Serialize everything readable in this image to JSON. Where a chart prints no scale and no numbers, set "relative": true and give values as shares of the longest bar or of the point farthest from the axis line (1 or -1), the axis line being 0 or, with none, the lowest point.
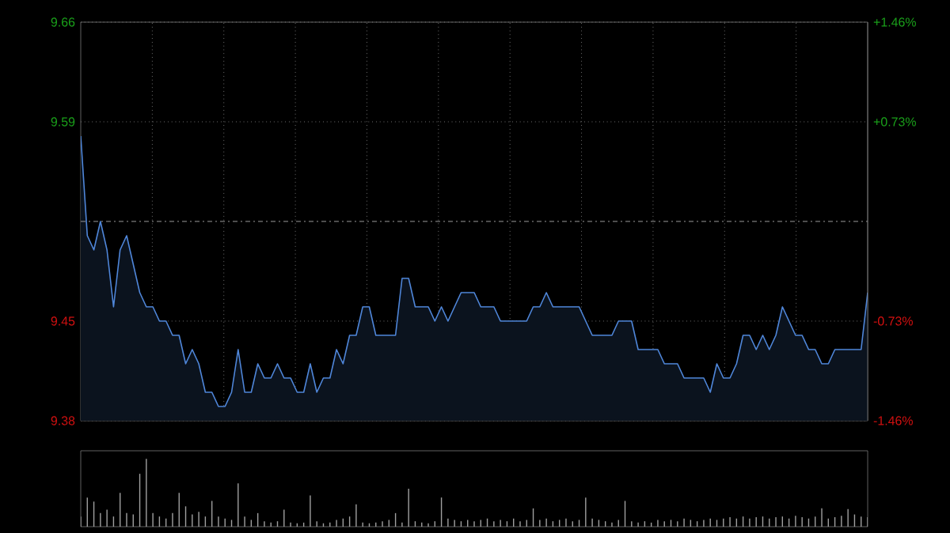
{
  "chart_data": [
    {
      "type": "area",
      "categories": [
        null,
        null,
        null,
        null,
        null,
        null,
        null,
        null,
        null,
        null,
        null,
        null,
        null,
        null,
        null,
        null,
        null,
        null,
        null,
        null,
        null,
        null,
        null,
        null,
        null,
        null,
        null,
        null,
        null,
        null,
        null,
        null,
        null,
        null,
        null,
        null,
        null,
        null,
        null,
        null,
        null,
        null,
        null,
        null,
        null,
        null,
        null,
        null,
        null,
        null,
        null,
        null,
        null,
        null,
        null,
        null,
        null,
        null,
        null,
        null,
        null,
        null,
        null,
        null,
        null,
        null,
        null,
        null,
        null,
        null,
        null,
        null,
        null,
        null,
        null,
        null,
        null,
        null,
        null,
        null,
        null,
        null,
        null,
        null,
        null,
        null,
        null,
        null,
        null,
        null,
        null,
        null,
        null,
        null,
        null,
        null,
        null,
        null,
        null,
        null,
        null,
        null,
        null,
        null,
        null,
        null,
        null,
        null,
        null,
        null,
        null,
        null,
        null,
        null,
        null,
        null,
        null,
        null,
        null,
        null,
        null
      ],
      "values": [
        9.58,
        9.51,
        9.5,
        9.52,
        9.5,
        9.46,
        9.5,
        9.51,
        9.49,
        9.47,
        9.46,
        9.46,
        9.45,
        9.45,
        9.44,
        9.44,
        9.42,
        9.43,
        9.42,
        9.4,
        9.4,
        9.39,
        9.39,
        9.4,
        9.43,
        9.4,
        9.4,
        9.42,
        9.41,
        9.41,
        9.42,
        9.41,
        9.41,
        9.4,
        9.4,
        9.42,
        9.4,
        9.41,
        9.41,
        9.43,
        9.42,
        9.44,
        9.44,
        9.46,
        9.46,
        9.44,
        9.44,
        9.44,
        9.44,
        9.48,
        9.48,
        9.46,
        9.46,
        9.46,
        9.45,
        9.46,
        9.45,
        9.46,
        9.47,
        9.47,
        9.47,
        9.46,
        9.46,
        9.46,
        9.45,
        9.45,
        9.45,
        9.45,
        9.45,
        9.46,
        9.46,
        9.47,
        9.46,
        9.46,
        9.46,
        9.46,
        9.46,
        9.45,
        9.44,
        9.44,
        9.44,
        9.44,
        9.45,
        9.45,
        9.45,
        9.43,
        9.43,
        9.43,
        9.43,
        9.42,
        9.42,
        9.42,
        9.41,
        9.41,
        9.41,
        9.41,
        9.4,
        9.42,
        9.41,
        9.41,
        9.42,
        9.44,
        9.44,
        9.43,
        9.44,
        9.43,
        9.44,
        9.46,
        9.45,
        9.44,
        9.44,
        9.43,
        9.43,
        9.42,
        9.42,
        9.43,
        9.43,
        9.43,
        9.43,
        9.43,
        9.47
      ],
      "color": "#4f86d9",
      "ylim": [
        9.38,
        9.66
      ],
      "yticks": [
        9.38,
        9.45,
        9.59,
        9.66
      ],
      "y2lim": [
        -1.46,
        1.46
      ],
      "y2ticks": [
        {
          "value": -1.46,
          "label": "-1.46%"
        },
        {
          "value": -0.73,
          "label": "-0.73%"
        },
        {
          "value": 0.73,
          "label": "+0.73%"
        },
        {
          "value": 1.46,
          "label": "+1.46%"
        }
      ],
      "ref_lines": [
        {
          "axis": "y",
          "value": 9.52,
          "line_style": "dashed"
        }
      ],
      "grid": true,
      "tick_labels": "y"
    },
    {
      "type": "bar",
      "relative": true,
      "categories": [
        null,
        null,
        null,
        null,
        null,
        null,
        null,
        null,
        null,
        null,
        null,
        null,
        null,
        null,
        null,
        null,
        null,
        null,
        null,
        null,
        null,
        null,
        null,
        null,
        null,
        null,
        null,
        null,
        null,
        null,
        null,
        null,
        null,
        null,
        null,
        null,
        null,
        null,
        null,
        null,
        null,
        null,
        null,
        null,
        null,
        null,
        null,
        null,
        null,
        null,
        null,
        null,
        null,
        null,
        null,
        null,
        null,
        null,
        null,
        null,
        null,
        null,
        null,
        null,
        null,
        null,
        null,
        null,
        null,
        null,
        null,
        null,
        null,
        null,
        null,
        null,
        null,
        null,
        null,
        null,
        null,
        null,
        null,
        null,
        null,
        null,
        null,
        null,
        null,
        null,
        null,
        null,
        null,
        null,
        null,
        null,
        null,
        null,
        null,
        null,
        null,
        null,
        null,
        null,
        null,
        null,
        null,
        null,
        null,
        null,
        null,
        null,
        null,
        null,
        null,
        null,
        null,
        null,
        null,
        null,
        null
      ],
      "values": [
        0.15,
        0.43,
        0.37,
        0.2,
        0.25,
        0.15,
        0.5,
        0.2,
        0.18,
        0.78,
        1.0,
        0.2,
        0.15,
        0.12,
        0.2,
        0.5,
        0.3,
        0.18,
        0.22,
        0.15,
        0.38,
        0.15,
        0.12,
        0.1,
        0.64,
        0.15,
        0.1,
        0.2,
        0.08,
        0.06,
        0.08,
        0.25,
        0.06,
        0.05,
        0.06,
        0.46,
        0.08,
        0.05,
        0.06,
        0.1,
        0.12,
        0.15,
        0.33,
        0.06,
        0.05,
        0.06,
        0.08,
        0.1,
        0.2,
        0.06,
        0.56,
        0.08,
        0.06,
        0.05,
        0.08,
        0.43,
        0.12,
        0.1,
        0.08,
        0.1,
        0.08,
        0.1,
        0.12,
        0.08,
        0.1,
        0.08,
        0.12,
        0.08,
        0.1,
        0.27,
        0.1,
        0.12,
        0.08,
        0.1,
        0.12,
        0.08,
        0.1,
        0.43,
        0.12,
        0.1,
        0.08,
        0.06,
        0.1,
        0.38,
        0.08,
        0.06,
        0.08,
        0.06,
        0.1,
        0.08,
        0.1,
        0.08,
        0.12,
        0.1,
        0.08,
        0.1,
        0.12,
        0.1,
        0.12,
        0.14,
        0.12,
        0.15,
        0.12,
        0.14,
        0.15,
        0.12,
        0.14,
        0.15,
        0.12,
        0.16,
        0.14,
        0.12,
        0.15,
        0.27,
        0.12,
        0.14,
        0.16,
        0.26,
        0.18,
        0.15,
        0.14
      ],
      "color": "#a0a0a0",
      "tick_labels": false
    }
  ]
}
